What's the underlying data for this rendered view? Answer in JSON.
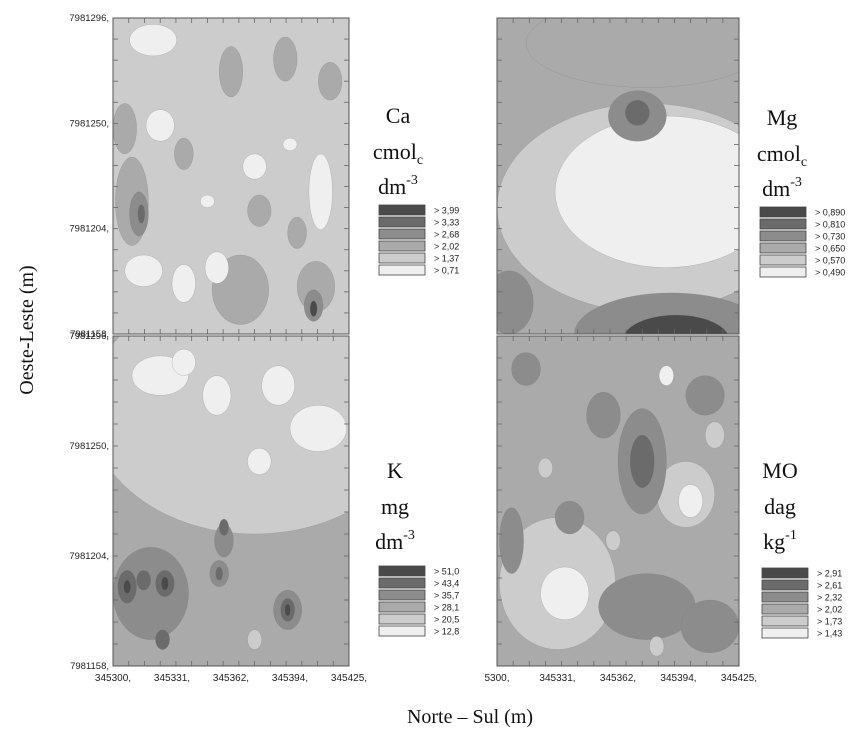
{
  "figure": {
    "ylabel": "Oeste-Leste (m)",
    "xlabel": "Norte – Sul (m)"
  },
  "chart_data": [
    {
      "type": "heatmap",
      "panel": "top-left",
      "variable": "Ca",
      "unit_lines": [
        "cmol",
        "dm"
      ],
      "unit_sub": "c",
      "unit_sup": "-3",
      "y_ticks": [
        "7981296,",
        "7981250,",
        "7981204,",
        "7981158,"
      ],
      "x_ticks": [],
      "legend": {
        "labels": [
          "> 3,99",
          "> 3,33",
          "> 2,68",
          "> 2,02",
          "> 1,37",
          "> 0,71"
        ],
        "thresholds": [
          3.99,
          3.33,
          2.68,
          2.02,
          1.37,
          0.71
        ],
        "colors": [
          "#4a4a4a",
          "#6b6b6b",
          "#8c8c8c",
          "#aaaaaa",
          "#cccccc",
          "#efefef"
        ]
      },
      "background_class": 4,
      "field": [
        {
          "cx": 0.08,
          "cy": 0.58,
          "rx": 0.07,
          "ry": 0.14,
          "cls": 3
        },
        {
          "cx": 0.11,
          "cy": 0.62,
          "rx": 0.04,
          "ry": 0.07,
          "cls": 2
        },
        {
          "cx": 0.12,
          "cy": 0.62,
          "rx": 0.015,
          "ry": 0.03,
          "cls": 1
        },
        {
          "cx": 0.54,
          "cy": 0.86,
          "rx": 0.12,
          "ry": 0.11,
          "cls": 3
        },
        {
          "cx": 0.86,
          "cy": 0.85,
          "rx": 0.08,
          "ry": 0.08,
          "cls": 3
        },
        {
          "cx": 0.85,
          "cy": 0.91,
          "rx": 0.04,
          "ry": 0.05,
          "cls": 2
        },
        {
          "cx": 0.85,
          "cy": 0.92,
          "rx": 0.015,
          "ry": 0.025,
          "cls": 0
        },
        {
          "cx": 0.5,
          "cy": 0.17,
          "rx": 0.05,
          "ry": 0.08,
          "cls": 3
        },
        {
          "cx": 0.73,
          "cy": 0.13,
          "rx": 0.05,
          "ry": 0.07,
          "cls": 3
        },
        {
          "cx": 0.92,
          "cy": 0.2,
          "rx": 0.05,
          "ry": 0.06,
          "cls": 3
        },
        {
          "cx": 0.3,
          "cy": 0.43,
          "rx": 0.04,
          "ry": 0.05,
          "cls": 3
        },
        {
          "cx": 0.62,
          "cy": 0.61,
          "rx": 0.05,
          "ry": 0.05,
          "cls": 3
        },
        {
          "cx": 0.78,
          "cy": 0.68,
          "rx": 0.04,
          "ry": 0.05,
          "cls": 3
        },
        {
          "cx": 0.05,
          "cy": 0.35,
          "rx": 0.05,
          "ry": 0.08,
          "cls": 3
        },
        {
          "cx": 0.2,
          "cy": 0.34,
          "rx": 0.06,
          "ry": 0.05,
          "cls": 5
        },
        {
          "cx": 0.6,
          "cy": 0.47,
          "rx": 0.05,
          "ry": 0.04,
          "cls": 5
        },
        {
          "cx": 0.88,
          "cy": 0.55,
          "rx": 0.05,
          "ry": 0.12,
          "cls": 5
        },
        {
          "cx": 0.13,
          "cy": 0.8,
          "rx": 0.08,
          "ry": 0.05,
          "cls": 5
        },
        {
          "cx": 0.3,
          "cy": 0.84,
          "rx": 0.05,
          "ry": 0.06,
          "cls": 5
        },
        {
          "cx": 0.44,
          "cy": 0.79,
          "rx": 0.05,
          "ry": 0.05,
          "cls": 5
        },
        {
          "cx": 0.17,
          "cy": 0.07,
          "rx": 0.1,
          "ry": 0.05,
          "cls": 5
        },
        {
          "cx": 0.4,
          "cy": 0.58,
          "rx": 0.03,
          "ry": 0.02,
          "cls": 5
        },
        {
          "cx": 0.75,
          "cy": 0.4,
          "rx": 0.03,
          "ry": 0.02,
          "cls": 5
        }
      ]
    },
    {
      "type": "heatmap",
      "panel": "top-right",
      "variable": "Mg",
      "unit_lines": [
        "cmol",
        "dm"
      ],
      "unit_sub": "c",
      "unit_sup": "-3",
      "y_ticks": [],
      "x_ticks": [],
      "legend": {
        "labels": [
          "> 0,890",
          "> 0,810",
          "> 0,730",
          "> 0,650",
          "> 0,570",
          "> 0,490"
        ],
        "thresholds": [
          0.89,
          0.81,
          0.73,
          0.65,
          0.57,
          0.49
        ],
        "colors": [
          "#4a4a4a",
          "#6b6b6b",
          "#8c8c8c",
          "#aaaaaa",
          "#cccccc",
          "#efefef"
        ]
      },
      "background_class": 3,
      "field": [
        {
          "cx": 0.62,
          "cy": 0.6,
          "rx": 0.62,
          "ry": 0.33,
          "cls": 4
        },
        {
          "cx": 0.7,
          "cy": 0.55,
          "rx": 0.46,
          "ry": 0.24,
          "cls": 5
        },
        {
          "cx": 0.62,
          "cy": 0.08,
          "rx": 0.5,
          "ry": 0.14,
          "cls": 3
        },
        {
          "cx": 0.58,
          "cy": 0.31,
          "rx": 0.12,
          "ry": 0.08,
          "cls": 2
        },
        {
          "cx": 0.58,
          "cy": 0.3,
          "rx": 0.05,
          "ry": 0.04,
          "cls": 1
        },
        {
          "cx": 0.72,
          "cy": 1.0,
          "rx": 0.4,
          "ry": 0.13,
          "cls": 2
        },
        {
          "cx": 0.74,
          "cy": 1.02,
          "rx": 0.22,
          "ry": 0.08,
          "cls": 0
        },
        {
          "cx": 0.05,
          "cy": 0.9,
          "rx": 0.1,
          "ry": 0.1,
          "cls": 2
        }
      ]
    },
    {
      "type": "heatmap",
      "panel": "bottom-left",
      "variable": "K",
      "unit_lines": [
        "mg",
        "dm"
      ],
      "unit_sub": "",
      "unit_sup": "-3",
      "y_ticks": [
        "7981296,",
        "7981250,",
        "7981204,",
        "7981158,"
      ],
      "x_ticks": [
        "345300,",
        "345331,",
        "345362,",
        "345394,",
        "345425,"
      ],
      "legend": {
        "labels": [
          "> 51,0",
          "> 43,4",
          "> 35,7",
          "> 28,1",
          "> 20,5",
          "> 12,8"
        ],
        "thresholds": [
          51.0,
          43.4,
          35.7,
          28.1,
          20.5,
          12.8
        ],
        "colors": [
          "#4a4a4a",
          "#6b6b6b",
          "#8c8c8c",
          "#aaaaaa",
          "#cccccc",
          "#efefef"
        ]
      },
      "background_class": 3,
      "field": [
        {
          "cx": 0.6,
          "cy": 0.22,
          "rx": 0.7,
          "ry": 0.38,
          "cls": 4
        },
        {
          "cx": 0.2,
          "cy": 0.12,
          "rx": 0.12,
          "ry": 0.06,
          "cls": 5
        },
        {
          "cx": 0.44,
          "cy": 0.18,
          "rx": 0.06,
          "ry": 0.06,
          "cls": 5
        },
        {
          "cx": 0.7,
          "cy": 0.15,
          "rx": 0.07,
          "ry": 0.06,
          "cls": 5
        },
        {
          "cx": 0.87,
          "cy": 0.28,
          "rx": 0.12,
          "ry": 0.07,
          "cls": 5
        },
        {
          "cx": 0.3,
          "cy": 0.08,
          "rx": 0.05,
          "ry": 0.04,
          "cls": 5
        },
        {
          "cx": 0.62,
          "cy": 0.38,
          "rx": 0.05,
          "ry": 0.04,
          "cls": 5
        },
        {
          "cx": 0.16,
          "cy": 0.78,
          "rx": 0.16,
          "ry": 0.14,
          "cls": 2
        },
        {
          "cx": 0.06,
          "cy": 0.76,
          "rx": 0.04,
          "ry": 0.05,
          "cls": 1
        },
        {
          "cx": 0.06,
          "cy": 0.76,
          "rx": 0.015,
          "ry": 0.02,
          "cls": 0
        },
        {
          "cx": 0.22,
          "cy": 0.75,
          "rx": 0.04,
          "ry": 0.04,
          "cls": 1
        },
        {
          "cx": 0.22,
          "cy": 0.75,
          "rx": 0.015,
          "ry": 0.02,
          "cls": 0
        },
        {
          "cx": 0.13,
          "cy": 0.74,
          "rx": 0.03,
          "ry": 0.03,
          "cls": 1
        },
        {
          "cx": 0.21,
          "cy": 0.92,
          "rx": 0.03,
          "ry": 0.03,
          "cls": 1
        },
        {
          "cx": 0.74,
          "cy": 0.83,
          "rx": 0.06,
          "ry": 0.06,
          "cls": 2
        },
        {
          "cx": 0.74,
          "cy": 0.83,
          "rx": 0.03,
          "ry": 0.035,
          "cls": 1
        },
        {
          "cx": 0.74,
          "cy": 0.83,
          "rx": 0.012,
          "ry": 0.018,
          "cls": 0
        },
        {
          "cx": 0.47,
          "cy": 0.62,
          "rx": 0.04,
          "ry": 0.05,
          "cls": 2
        },
        {
          "cx": 0.47,
          "cy": 0.58,
          "rx": 0.02,
          "ry": 0.025,
          "cls": 1
        },
        {
          "cx": 0.45,
          "cy": 0.72,
          "rx": 0.04,
          "ry": 0.04,
          "cls": 2
        },
        {
          "cx": 0.45,
          "cy": 0.72,
          "rx": 0.015,
          "ry": 0.02,
          "cls": 1
        },
        {
          "cx": 0.6,
          "cy": 0.92,
          "rx": 0.03,
          "ry": 0.03,
          "cls": 4
        }
      ]
    },
    {
      "type": "heatmap",
      "panel": "bottom-right",
      "variable": "MO",
      "unit_lines": [
        "dag",
        "kg"
      ],
      "unit_sub": "",
      "unit_sup": "-1",
      "y_ticks": [],
      "x_ticks": [
        "5300,",
        "345331,",
        "345362,",
        "345394,",
        "345425,"
      ],
      "legend": {
        "labels": [
          "> 2,91",
          "> 2,61",
          "> 2,32",
          "> 2,02",
          "> 1,73",
          "> 1,43"
        ],
        "thresholds": [
          2.91,
          2.61,
          2.32,
          2.02,
          1.73,
          1.43
        ],
        "colors": [
          "#4a4a4a",
          "#6b6b6b",
          "#8c8c8c",
          "#aaaaaa",
          "#cccccc",
          "#efefef"
        ]
      },
      "background_class": 3,
      "field": [
        {
          "cx": 0.25,
          "cy": 0.75,
          "rx": 0.24,
          "ry": 0.2,
          "cls": 4
        },
        {
          "cx": 0.28,
          "cy": 0.78,
          "rx": 0.1,
          "ry": 0.08,
          "cls": 5
        },
        {
          "cx": 0.78,
          "cy": 0.48,
          "rx": 0.12,
          "ry": 0.1,
          "cls": 4
        },
        {
          "cx": 0.8,
          "cy": 0.5,
          "rx": 0.05,
          "ry": 0.05,
          "cls": 5
        },
        {
          "cx": 0.6,
          "cy": 0.38,
          "rx": 0.1,
          "ry": 0.16,
          "cls": 2
        },
        {
          "cx": 0.6,
          "cy": 0.38,
          "rx": 0.05,
          "ry": 0.08,
          "cls": 1
        },
        {
          "cx": 0.44,
          "cy": 0.24,
          "rx": 0.07,
          "ry": 0.07,
          "cls": 2
        },
        {
          "cx": 0.86,
          "cy": 0.18,
          "rx": 0.08,
          "ry": 0.06,
          "cls": 2
        },
        {
          "cx": 0.62,
          "cy": 0.82,
          "rx": 0.2,
          "ry": 0.1,
          "cls": 2
        },
        {
          "cx": 0.88,
          "cy": 0.88,
          "rx": 0.12,
          "ry": 0.08,
          "cls": 2
        },
        {
          "cx": 0.06,
          "cy": 0.62,
          "rx": 0.05,
          "ry": 0.1,
          "cls": 2
        },
        {
          "cx": 0.3,
          "cy": 0.55,
          "rx": 0.06,
          "ry": 0.05,
          "cls": 2
        },
        {
          "cx": 0.12,
          "cy": 0.1,
          "rx": 0.06,
          "ry": 0.05,
          "cls": 2
        },
        {
          "cx": 0.7,
          "cy": 0.12,
          "rx": 0.03,
          "ry": 0.03,
          "cls": 5
        },
        {
          "cx": 0.9,
          "cy": 0.3,
          "rx": 0.04,
          "ry": 0.04,
          "cls": 4
        },
        {
          "cx": 0.2,
          "cy": 0.4,
          "rx": 0.03,
          "ry": 0.03,
          "cls": 4
        },
        {
          "cx": 0.48,
          "cy": 0.62,
          "rx": 0.03,
          "ry": 0.03,
          "cls": 4
        },
        {
          "cx": 0.66,
          "cy": 0.94,
          "rx": 0.03,
          "ry": 0.03,
          "cls": 4
        }
      ]
    }
  ]
}
